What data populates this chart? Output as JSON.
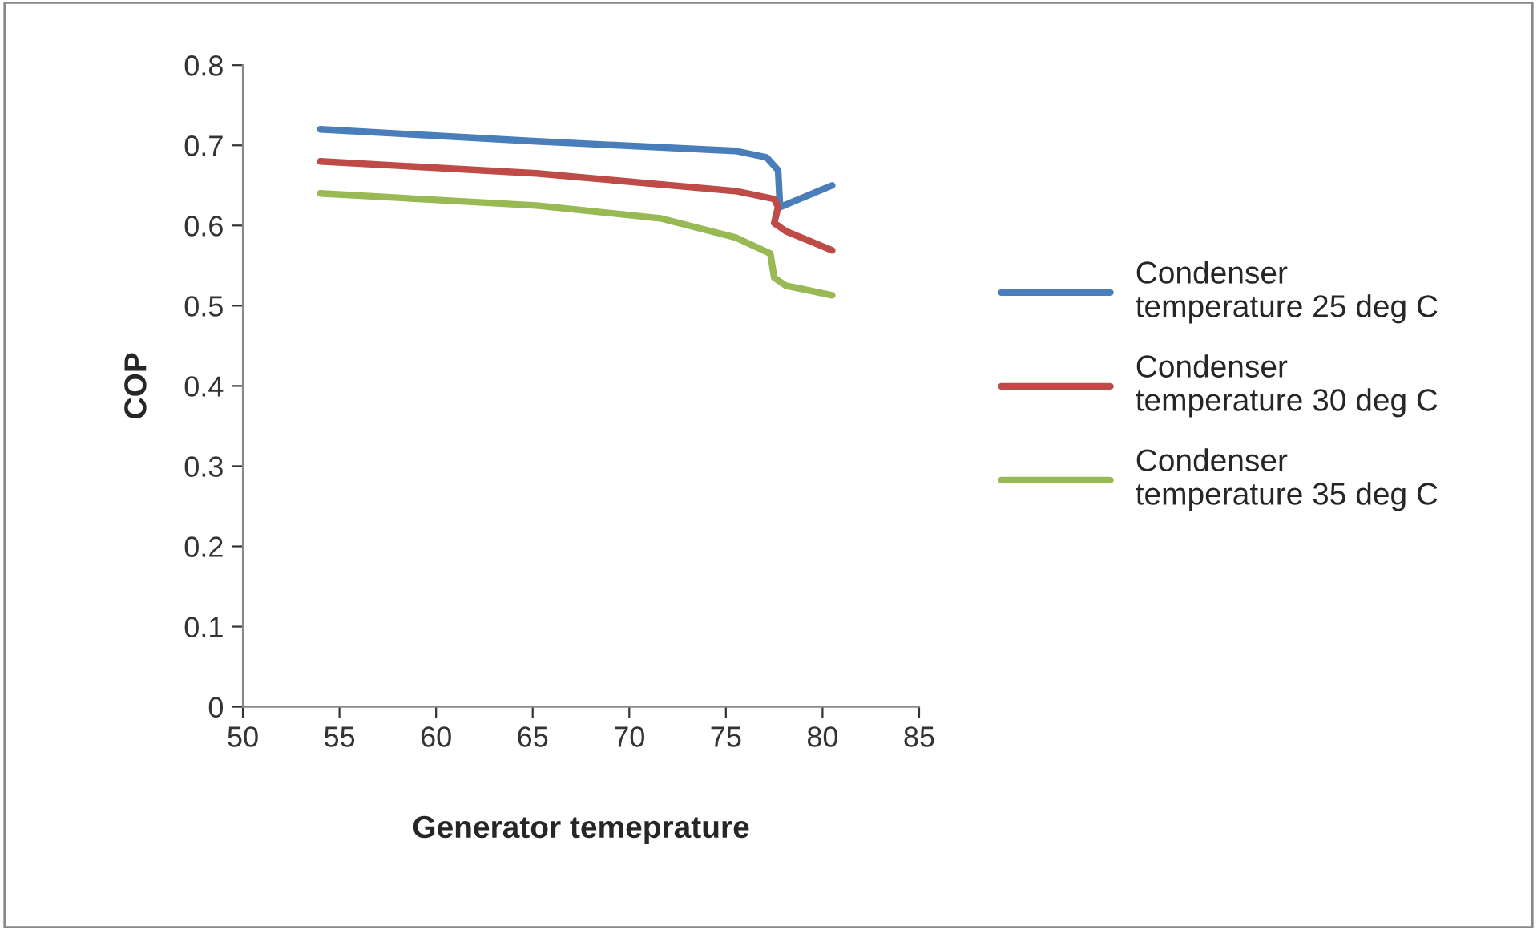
{
  "chart_data": {
    "type": "line",
    "xlabel": "Generator temeprature",
    "ylabel": "COP",
    "xlim": [
      50,
      85
    ],
    "xticks": [
      50,
      55,
      60,
      65,
      70,
      75,
      80,
      85
    ],
    "ylim": [
      0,
      0.8
    ],
    "yticks": [
      0,
      0.1,
      0.2,
      0.3,
      0.4,
      0.5,
      0.6,
      0.7,
      0.8
    ],
    "grid": false,
    "legend": "right",
    "marker": "none",
    "line_style": "solid",
    "series": [
      {
        "name": "Condenser temperature 25 deg C",
        "color": "#4a7ebb",
        "x": [
          54,
          65.2,
          75.5,
          77.1,
          77.7,
          77.8,
          80.5
        ],
        "values": [
          0.72,
          0.705,
          0.693,
          0.685,
          0.669,
          0.623,
          0.65
        ]
      },
      {
        "name": "Condenser temperature 30 deg C",
        "color": "#be4b48",
        "x": [
          54,
          65.2,
          75.5,
          77.5,
          77.7,
          77.5,
          78.1,
          80.5
        ],
        "values": [
          0.68,
          0.665,
          0.643,
          0.633,
          0.623,
          0.603,
          0.593,
          0.569
        ]
      },
      {
        "name": "Condenser temperature 35 deg C",
        "color": "#98b954",
        "x": [
          54,
          65.2,
          71.6,
          75.5,
          77.3,
          77.5,
          78.1,
          80.5
        ],
        "values": [
          0.64,
          0.625,
          0.609,
          0.585,
          0.565,
          0.535,
          0.525,
          0.513
        ]
      }
    ]
  }
}
